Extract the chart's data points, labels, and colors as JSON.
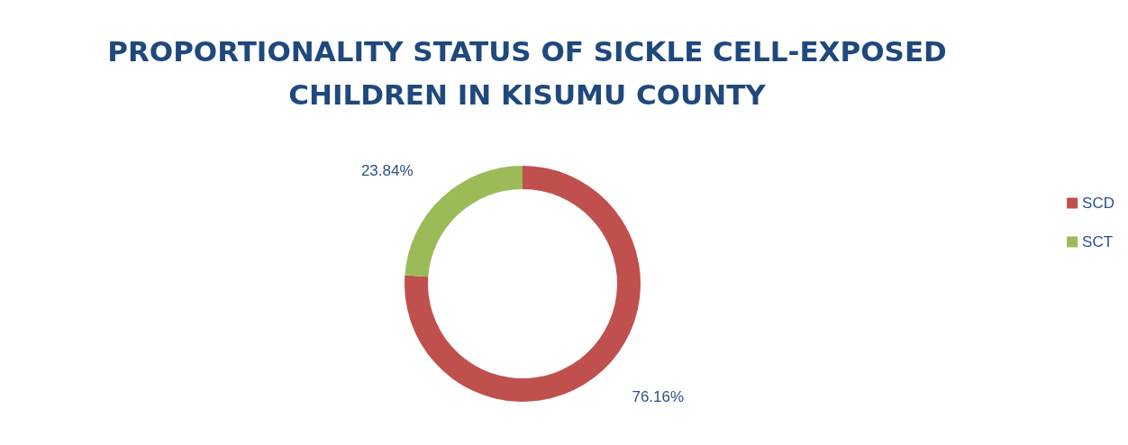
{
  "chart_data": {
    "type": "donut",
    "title": "PROPORTIONALITY STATUS OF SICKLE CELL-EXPOSED\nCHILDREN IN KISUMU COUNTY",
    "categories": [
      "SCD",
      "SCT"
    ],
    "values": [
      76.16,
      23.84
    ],
    "value_labels": [
      "76.16%",
      "23.84%"
    ],
    "colors": [
      "#c0504d",
      "#9bbb59"
    ],
    "legend": "right"
  }
}
